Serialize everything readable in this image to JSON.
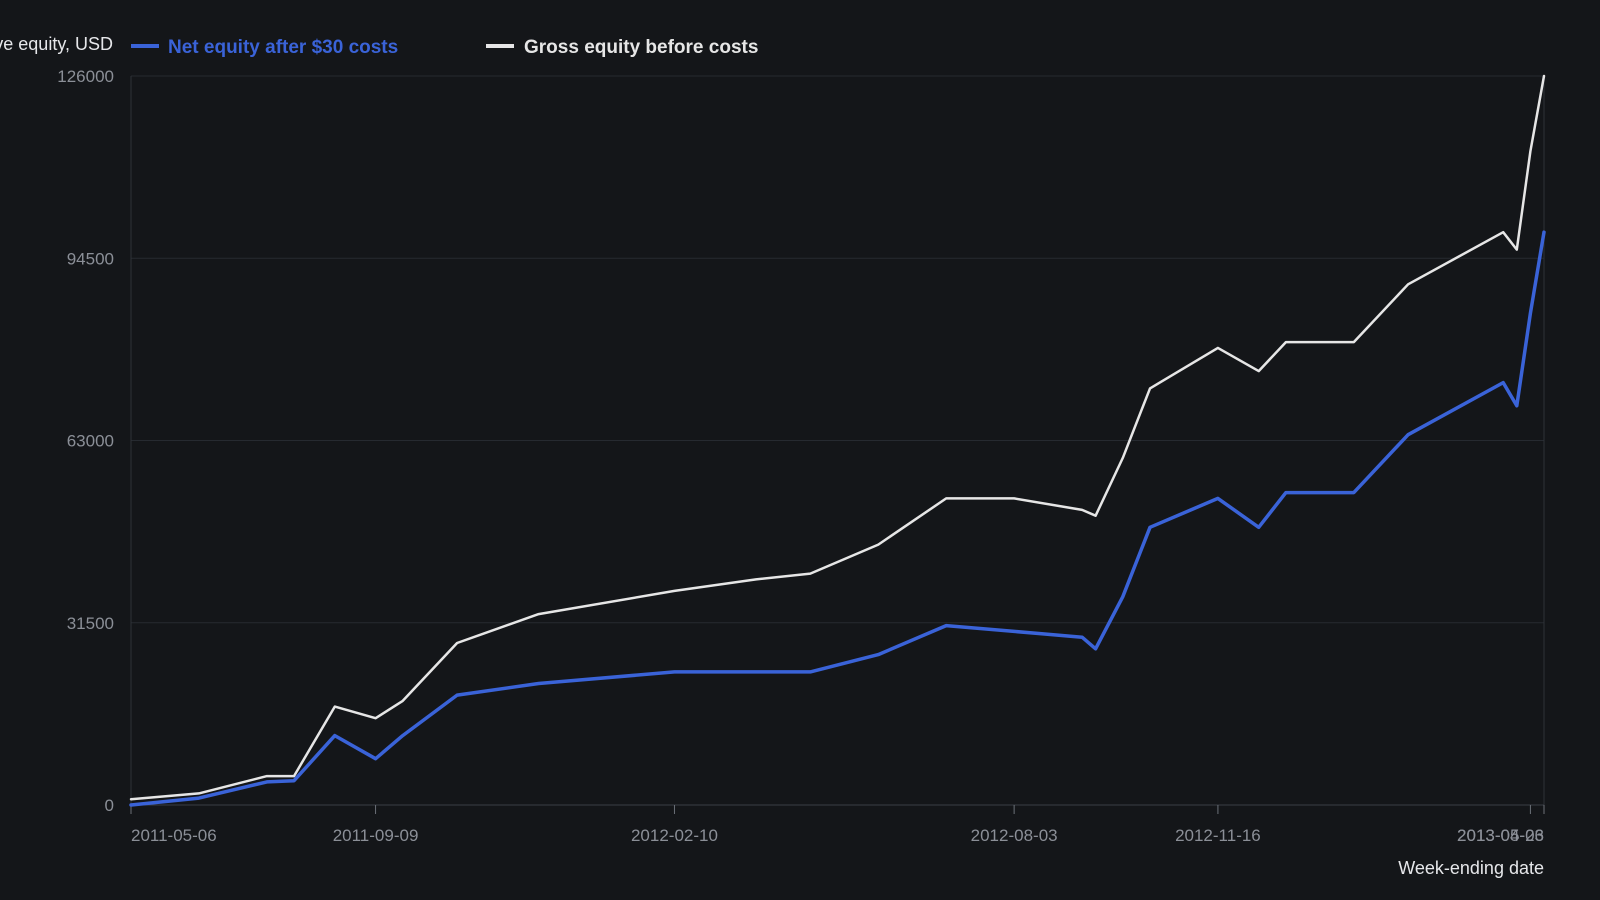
{
  "chart_data": {
    "type": "line",
    "ylabel": "Cumulative equity, USD",
    "xlabel": "Week-ending date",
    "ylim": [
      0,
      126000
    ],
    "y_ticks": [
      0,
      31500,
      63000,
      94500,
      126000
    ],
    "x_tick_labels": [
      "2011-05-06",
      "2011-09-09",
      "2012-02-10",
      "2012-08-03",
      "2012-11-16",
      "2013-04-26",
      "2013-05-03"
    ],
    "x": [
      "2011-05-06",
      "2011-06-10",
      "2011-07-15",
      "2011-07-29",
      "2011-08-19",
      "2011-09-09",
      "2011-09-23",
      "2011-10-21",
      "2011-12-02",
      "2012-02-10",
      "2012-03-23",
      "2012-04-20",
      "2012-05-25",
      "2012-06-29",
      "2012-08-03",
      "2012-09-07",
      "2012-09-14",
      "2012-09-28",
      "2012-10-12",
      "2012-11-16",
      "2012-12-07",
      "2012-12-21",
      "2013-01-25",
      "2013-02-22",
      "2013-04-12",
      "2013-04-19",
      "2013-04-26",
      "2013-05-03"
    ],
    "series": [
      {
        "name": "Net equity after $30 costs",
        "color": "#3a63d8",
        "values": [
          0,
          1200,
          4000,
          4200,
          12000,
          8000,
          12000,
          19000,
          21000,
          23000,
          23000,
          23000,
          26000,
          31000,
          30000,
          29000,
          27000,
          36000,
          48000,
          53000,
          48000,
          54000,
          54000,
          64000,
          73000,
          69000,
          85000,
          99000
        ]
      },
      {
        "name": "Gross equity before costs",
        "color": "#e6e6e6",
        "values": [
          1000,
          2000,
          5000,
          5000,
          17000,
          15000,
          18000,
          28000,
          33000,
          37000,
          39000,
          40000,
          45000,
          53000,
          53000,
          51000,
          50000,
          60000,
          72000,
          79000,
          75000,
          80000,
          80000,
          90000,
          99000,
          96000,
          113000,
          126000
        ]
      }
    ],
    "grid": "horizontal",
    "legend_position": "top-left"
  }
}
